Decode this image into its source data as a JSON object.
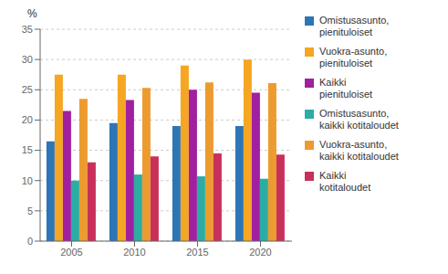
{
  "chart_data": {
    "type": "bar",
    "ylabel": "%",
    "categories": [
      "2005",
      "2010",
      "2015",
      "2020"
    ],
    "series": [
      {
        "name": "Omistusasunto,\npienituloiset",
        "color": "#2E75B6",
        "values": [
          16.5,
          19.5,
          19.0,
          19.0
        ]
      },
      {
        "name": "Vuokra-asunto,\npienituloiset",
        "color": "#F5A623",
        "values": [
          27.5,
          27.5,
          29.0,
          30.0
        ]
      },
      {
        "name": "Kaikki\npienituloiset",
        "color": "#A020A0",
        "values": [
          21.5,
          23.3,
          25.0,
          24.5
        ]
      },
      {
        "name": "Omistusasunto,\nkaikki kotitaloudet",
        "color": "#2BADA4",
        "values": [
          10.0,
          11.0,
          10.7,
          10.3
        ]
      },
      {
        "name": "Vuokra-asunto,\nkaikki kotitaloudet",
        "color": "#ED9B2F",
        "values": [
          23.5,
          25.3,
          26.2,
          26.1
        ]
      },
      {
        "name": "Kaikki\nkotitaloudet",
        "color": "#C8305A",
        "values": [
          13.0,
          14.0,
          14.5,
          14.3
        ]
      }
    ],
    "ylim": [
      0,
      35
    ],
    "yticks": [
      0,
      5,
      10,
      15,
      20,
      25,
      30,
      35
    ],
    "grid": true,
    "legend": "right"
  }
}
